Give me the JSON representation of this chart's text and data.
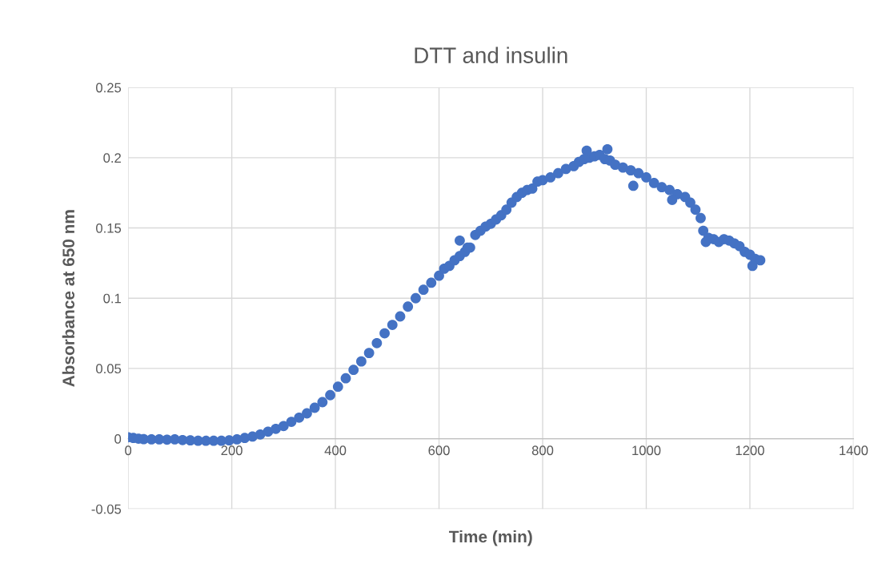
{
  "chart_data": {
    "type": "scatter",
    "title": "DTT and insulin",
    "xlabel": "Time (min)",
    "ylabel": "Absorbance at 650 nm",
    "xlim": [
      0,
      1400
    ],
    "xticks": [
      0,
      200,
      400,
      600,
      800,
      1000,
      1200,
      1400
    ],
    "ylim": [
      -0.05,
      0.25
    ],
    "yticks": [
      -0.05,
      0,
      0.05,
      0.1,
      0.15,
      0.2,
      0.25
    ],
    "grid": true,
    "marker": "circle",
    "series": [
      {
        "color": "#4472c4",
        "x": [
          0,
          10,
          20,
          30,
          45,
          60,
          75,
          90,
          105,
          120,
          135,
          150,
          165,
          180,
          195,
          210,
          225,
          240,
          255,
          270,
          285,
          300,
          315,
          330,
          345,
          360,
          375,
          390,
          405,
          420,
          435,
          450,
          465,
          480,
          495,
          510,
          525,
          540,
          555,
          570,
          585,
          600,
          610,
          620,
          630,
          640,
          650,
          660,
          670,
          680,
          690,
          700,
          710,
          720,
          730,
          740,
          750,
          760,
          770,
          780,
          790,
          800,
          815,
          830,
          845,
          860,
          870,
          880,
          890,
          900,
          910,
          920,
          930,
          940,
          955,
          970,
          985,
          1000,
          1015,
          1030,
          1045,
          1060,
          1075,
          1085,
          1095,
          1105,
          1110,
          1120,
          1130,
          1140,
          1150,
          1160,
          1170,
          1180,
          1190,
          1200,
          1210,
          1220,
          640,
          655,
          975,
          885,
          925,
          1205,
          1115,
          1050
        ],
        "values": [
          0.001,
          0.0005,
          0.0,
          -0.0003,
          -0.0005,
          -0.0005,
          -0.0007,
          -0.0005,
          -0.001,
          -0.0012,
          -0.0015,
          -0.0015,
          -0.0015,
          -0.0015,
          -0.0012,
          -0.0005,
          0.0005,
          0.0015,
          0.003,
          0.005,
          0.007,
          0.009,
          0.012,
          0.015,
          0.018,
          0.022,
          0.026,
          0.031,
          0.037,
          0.043,
          0.049,
          0.055,
          0.061,
          0.068,
          0.075,
          0.081,
          0.087,
          0.094,
          0.1,
          0.106,
          0.111,
          0.116,
          0.121,
          0.123,
          0.127,
          0.13,
          0.133,
          0.136,
          0.145,
          0.148,
          0.151,
          0.153,
          0.156,
          0.159,
          0.163,
          0.168,
          0.172,
          0.175,
          0.177,
          0.178,
          0.183,
          0.184,
          0.186,
          0.189,
          0.192,
          0.194,
          0.197,
          0.199,
          0.2,
          0.201,
          0.202,
          0.199,
          0.198,
          0.195,
          0.193,
          0.191,
          0.189,
          0.186,
          0.182,
          0.179,
          0.177,
          0.174,
          0.172,
          0.168,
          0.163,
          0.157,
          0.148,
          0.143,
          0.142,
          0.14,
          0.142,
          0.141,
          0.139,
          0.137,
          0.133,
          0.131,
          0.128,
          0.127,
          0.141,
          0.136,
          0.18,
          0.205,
          0.206,
          0.123,
          0.14,
          0.17
        ]
      }
    ]
  }
}
